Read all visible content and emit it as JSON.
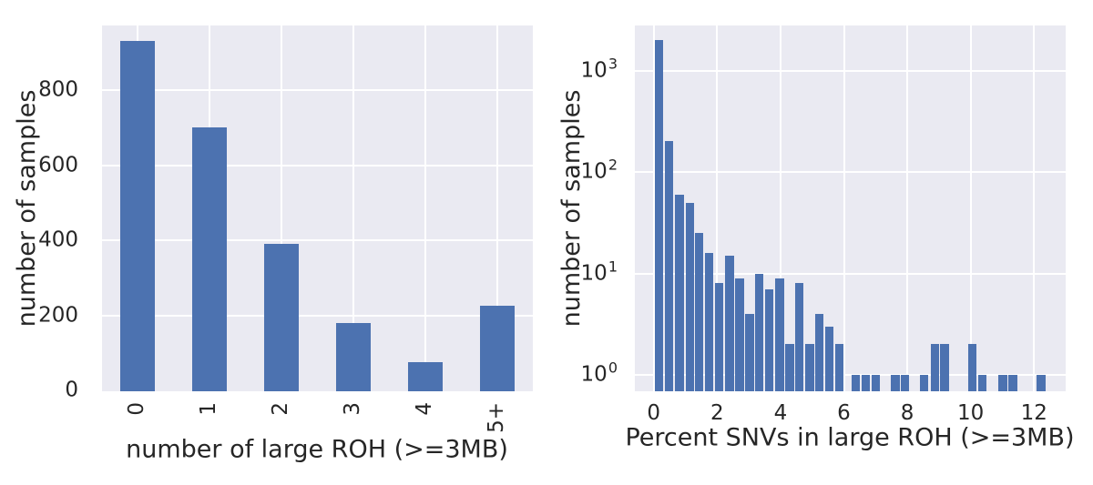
{
  "figure": {
    "background": "#ffffff",
    "panel_background": "#eaeaf2",
    "grid_color": "#ffffff",
    "bar_color": "#4c72b0",
    "text_color": "#262626"
  },
  "chart_data": [
    {
      "type": "bar",
      "panel": "left",
      "title": "",
      "xlabel": "number of large ROH (>=3MB)",
      "ylabel": "number of samples",
      "categories": [
        "0",
        "1",
        "2",
        "3",
        "4",
        "5+"
      ],
      "values": [
        930,
        700,
        390,
        180,
        75,
        225
      ],
      "yticks": [
        0,
        200,
        400,
        600,
        800
      ],
      "ylim": [
        0,
        970
      ],
      "grid": true,
      "legend": "none",
      "xtick_rotation": 90
    },
    {
      "type": "bar",
      "subtype": "histogram",
      "panel": "right",
      "title": "",
      "xlabel": "Percent SNVs in large ROH (>=3MB)",
      "ylabel": "number of samples",
      "yscale": "log",
      "xticks": [
        0,
        2,
        4,
        6,
        8,
        10,
        12
      ],
      "xlim": [
        -0.6,
        13.0
      ],
      "ylim": [
        0.67,
        2800
      ],
      "yticks": [
        {
          "base": "10",
          "exp": "0"
        },
        {
          "base": "10",
          "exp": "1"
        },
        {
          "base": "10",
          "exp": "2"
        },
        {
          "base": "10",
          "exp": "3"
        }
      ],
      "grid": true,
      "legend": "none",
      "bin_width": 0.3,
      "bins": [
        {
          "left": 0.02,
          "count": 2000
        },
        {
          "left": 0.33,
          "count": 200
        },
        {
          "left": 0.66,
          "count": 60
        },
        {
          "left": 0.98,
          "count": 50
        },
        {
          "left": 1.27,
          "count": 25
        },
        {
          "left": 1.6,
          "count": 16
        },
        {
          "left": 1.91,
          "count": 8
        },
        {
          "left": 2.24,
          "count": 15
        },
        {
          "left": 2.56,
          "count": 9
        },
        {
          "left": 2.87,
          "count": 4
        },
        {
          "left": 3.18,
          "count": 10
        },
        {
          "left": 3.49,
          "count": 7
        },
        {
          "left": 3.82,
          "count": 9
        },
        {
          "left": 4.14,
          "count": 2
        },
        {
          "left": 4.44,
          "count": 8
        },
        {
          "left": 4.77,
          "count": 2
        },
        {
          "left": 5.08,
          "count": 4
        },
        {
          "left": 5.39,
          "count": 3
        },
        {
          "left": 5.7,
          "count": 2
        },
        {
          "left": 6.22,
          "count": 1
        },
        {
          "left": 6.53,
          "count": 1
        },
        {
          "left": 6.85,
          "count": 1
        },
        {
          "left": 7.47,
          "count": 1
        },
        {
          "left": 7.78,
          "count": 1
        },
        {
          "left": 8.37,
          "count": 1
        },
        {
          "left": 8.71,
          "count": 2
        },
        {
          "left": 9.02,
          "count": 2
        },
        {
          "left": 9.89,
          "count": 2
        },
        {
          "left": 10.22,
          "count": 1
        },
        {
          "left": 10.86,
          "count": 1
        },
        {
          "left": 11.18,
          "count": 1
        },
        {
          "left": 12.07,
          "count": 1
        }
      ]
    }
  ]
}
